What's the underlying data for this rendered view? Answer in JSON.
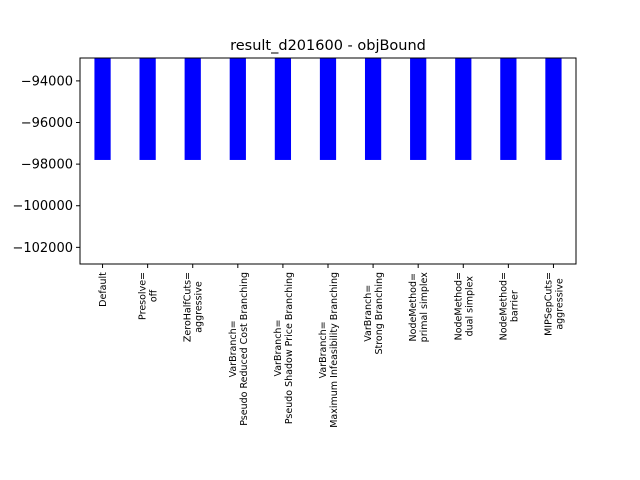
{
  "chart_data": {
    "type": "bar",
    "title": "result_d201600 - objBound",
    "xlabel": "",
    "ylabel": "",
    "categories": [
      [
        "Default"
      ],
      [
        "Presolve=",
        "off"
      ],
      [
        "ZeroHalfCuts=",
        "aggressive"
      ],
      [
        "VarBranch=",
        "Pseudo Reduced Cost Branching"
      ],
      [
        "VarBranch=",
        "Pseudo Shadow Price Branching"
      ],
      [
        "VarBranch=",
        "Maximum Infeasibility Branching"
      ],
      [
        "VarBranch=",
        "Strong Branching"
      ],
      [
        "NodeMethod=",
        "primal simplex"
      ],
      [
        "NodeMethod=",
        "dual simplex"
      ],
      [
        "NodeMethod=",
        "barrier"
      ],
      [
        "MIPSepCuts=",
        "aggressive"
      ]
    ],
    "series": [
      {
        "values": [
          -97800,
          -97800,
          -97800,
          -97800,
          -97800,
          -97800,
          -97800,
          -97800,
          -97800,
          -97800,
          -97800
        ]
      }
    ],
    "ylim": [
      -102800,
      -92900
    ],
    "yticks": [
      -94000,
      -96000,
      -98000,
      -100000,
      -102000
    ],
    "ytick_labels": [
      "−94000",
      "−96000",
      "−98000",
      "−100000",
      "−102000"
    ],
    "bar_color": "#0000ff",
    "grid": false,
    "legend": "none"
  }
}
